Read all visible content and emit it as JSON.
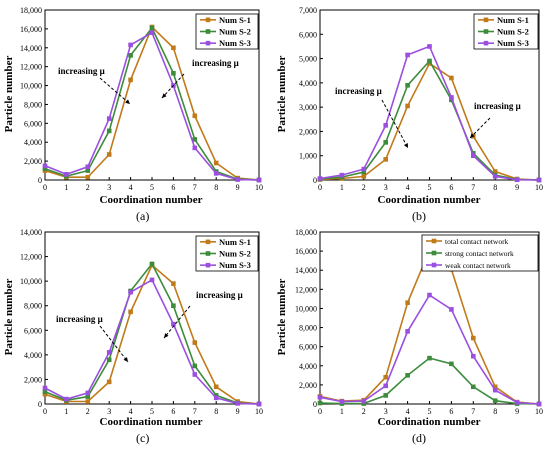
{
  "colors": {
    "series1": "#C07A1A",
    "series2": "#3C8C3C",
    "series3": "#9B4FE0",
    "axis": "#000000"
  },
  "chart_data": [
    {
      "type": "line",
      "panel": "(a)",
      "xlabel": "Coordination number",
      "ylabel": "Particle number",
      "x": [
        0,
        1,
        2,
        3,
        4,
        5,
        6,
        7,
        8,
        9,
        10
      ],
      "xlim": [
        0,
        10
      ],
      "ylim": [
        0,
        18000
      ],
      "yticks": [
        0,
        2000,
        4000,
        6000,
        8000,
        10000,
        12000,
        14000,
        16000,
        18000
      ],
      "ytick_labels": [
        "0",
        "2,000",
        "4,000",
        "6,000",
        "8,000",
        "10,000",
        "12,000",
        "14,000",
        "16,000",
        "18,000"
      ],
      "legend_position": "top-right",
      "series": [
        {
          "name": "Num S-1",
          "values": [
            1000,
            300,
            300,
            2700,
            10600,
            16200,
            14000,
            6800,
            1800,
            200,
            0
          ]
        },
        {
          "name": "Num S-2",
          "values": [
            1200,
            400,
            1000,
            5200,
            13200,
            16100,
            11300,
            4300,
            900,
            100,
            0
          ]
        },
        {
          "name": "Num S-3",
          "values": [
            1500,
            600,
            1400,
            6500,
            14300,
            15600,
            10000,
            3400,
            700,
            50,
            0
          ]
        }
      ],
      "annotations": [
        "increasing μ",
        "increasing μ"
      ]
    },
    {
      "type": "line",
      "panel": "(b)",
      "xlabel": "Coordination number",
      "ylabel": "Particle number",
      "x": [
        0,
        1,
        2,
        3,
        4,
        5,
        6,
        7,
        8,
        9,
        10
      ],
      "xlim": [
        0,
        10
      ],
      "ylim": [
        0,
        7000
      ],
      "yticks": [
        0,
        1000,
        2000,
        3000,
        4000,
        5000,
        6000,
        7000
      ],
      "ytick_labels": [
        "0",
        "1,000",
        "2,000",
        "3,000",
        "4,000",
        "5,000",
        "6,000",
        "7,000"
      ],
      "legend_position": "top-right",
      "series": [
        {
          "name": "Num S-1",
          "values": [
            20,
            60,
            150,
            850,
            3050,
            4800,
            4200,
            1800,
            350,
            40,
            0
          ]
        },
        {
          "name": "Num S-2",
          "values": [
            40,
            120,
            330,
            1550,
            3900,
            4900,
            3300,
            1100,
            200,
            20,
            0
          ]
        },
        {
          "name": "Num S-3",
          "values": [
            60,
            200,
            450,
            2250,
            5150,
            5500,
            3400,
            1000,
            150,
            10,
            0
          ]
        }
      ],
      "annotations": [
        "increasing μ",
        "increasing μ"
      ]
    },
    {
      "type": "line",
      "panel": "(c)",
      "xlabel": "Coordination number",
      "ylabel": "Particle number",
      "x": [
        0,
        1,
        2,
        3,
        4,
        5,
        6,
        7,
        8,
        9,
        10
      ],
      "xlim": [
        0,
        10
      ],
      "ylim": [
        0,
        14000
      ],
      "yticks": [
        0,
        2000,
        4000,
        6000,
        8000,
        10000,
        12000,
        14000
      ],
      "ytick_labels": [
        "0",
        "2,000",
        "4,000",
        "6,000",
        "8,000",
        "10,000",
        "12,000",
        "14,000"
      ],
      "legend_position": "top-right",
      "series": [
        {
          "name": "Num S-1",
          "values": [
            800,
            200,
            200,
            1800,
            7500,
            11300,
            9800,
            5000,
            1400,
            200,
            0
          ]
        },
        {
          "name": "Num S-2",
          "values": [
            1000,
            300,
            600,
            3600,
            9200,
            11400,
            8000,
            3100,
            700,
            80,
            0
          ]
        },
        {
          "name": "Num S-3",
          "values": [
            1300,
            400,
            900,
            4200,
            9100,
            10100,
            6500,
            2400,
            500,
            50,
            0
          ]
        }
      ],
      "annotations": [
        "increasing μ",
        "increasing μ"
      ]
    },
    {
      "type": "line",
      "panel": "(d)",
      "xlabel": "Coordination number",
      "ylabel": "Particle number",
      "x": [
        0,
        1,
        2,
        3,
        4,
        5,
        6,
        7,
        8,
        9,
        10
      ],
      "xlim": [
        0,
        10
      ],
      "ylim": [
        0,
        18000
      ],
      "yticks": [
        0,
        2000,
        4000,
        6000,
        8000,
        10000,
        12000,
        14000,
        16000,
        18000
      ],
      "ytick_labels": [
        "0",
        "2,000",
        "4,000",
        "6,000",
        "8,000",
        "10,000",
        "12,000",
        "14,000",
        "16,000",
        "18,000"
      ],
      "legend_position": "top-right",
      "series": [
        {
          "name": "total contact network",
          "values": [
            800,
            300,
            400,
            2800,
            10600,
            16100,
            14100,
            6900,
            1800,
            200,
            0
          ]
        },
        {
          "name": "strong contact network",
          "values": [
            100,
            50,
            50,
            900,
            3000,
            4800,
            4200,
            1800,
            350,
            40,
            0
          ]
        },
        {
          "name": "weak contact network",
          "values": [
            700,
            250,
            300,
            1900,
            7600,
            11400,
            9900,
            5000,
            1450,
            160,
            0
          ]
        }
      ],
      "annotations": []
    }
  ]
}
